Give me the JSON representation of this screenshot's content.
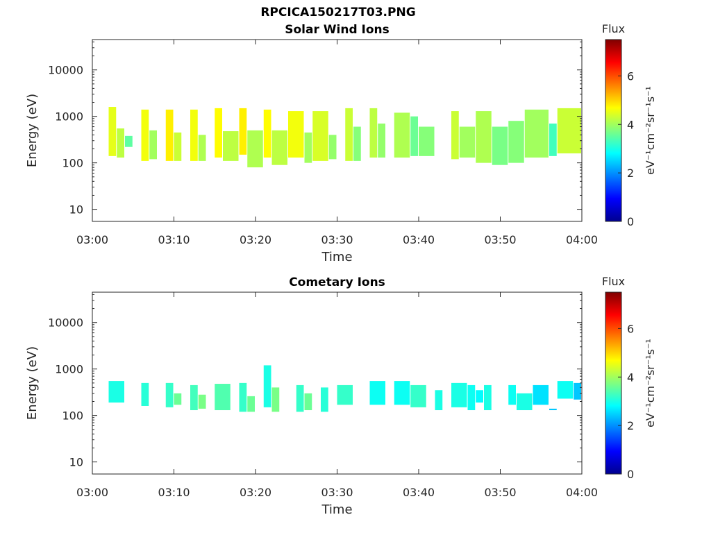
{
  "figure": {
    "filename_title": "RPCICA150217T03.PNG"
  },
  "chart_data": [
    {
      "type": "heatmap",
      "title": "Solar Wind Ions",
      "xlabel": "Time",
      "ylabel": "Energy (eV)",
      "x_ticks": [
        "03:00",
        "03:10",
        "03:20",
        "03:30",
        "03:40",
        "03:50",
        "04:00"
      ],
      "xlim": [
        "03:00",
        "04:00"
      ],
      "y_scale": "log",
      "ylim": [
        5.5,
        45000
      ],
      "y_ticks": [
        10,
        100,
        1000,
        10000
      ],
      "y_tick_labels": [
        "10",
        "100",
        "1000",
        "10000"
      ],
      "colorbar": {
        "title": "Flux",
        "unit_label": "eV⁻¹cm⁻²sr⁻¹s⁻¹",
        "range": [
          0,
          7.5
        ],
        "ticks": [
          "0",
          "2",
          "4",
          "6"
        ],
        "colormap": "jet"
      },
      "cells": [
        {
          "t": "03:02",
          "t_end": "03:03",
          "e_lo": 140,
          "e_hi": 1600,
          "flux": 4.5
        },
        {
          "t": "03:03",
          "t_end": "03:04",
          "e_lo": 130,
          "e_hi": 550,
          "flux": 4.2
        },
        {
          "t": "03:04",
          "t_end": "03:05",
          "e_lo": 220,
          "e_hi": 380,
          "flux": 3.5
        },
        {
          "t": "03:06",
          "t_end": "03:07",
          "e_lo": 110,
          "e_hi": 1400,
          "flux": 4.6
        },
        {
          "t": "03:07",
          "t_end": "03:08",
          "e_lo": 120,
          "e_hi": 500,
          "flux": 4.0
        },
        {
          "t": "03:09",
          "t_end": "03:10",
          "e_lo": 110,
          "e_hi": 1400,
          "flux": 4.8
        },
        {
          "t": "03:10",
          "t_end": "03:11",
          "e_lo": 110,
          "e_hi": 450,
          "flux": 4.3
        },
        {
          "t": "03:12",
          "t_end": "03:13",
          "e_lo": 110,
          "e_hi": 1400,
          "flux": 4.6
        },
        {
          "t": "03:13",
          "t_end": "03:14",
          "e_lo": 110,
          "e_hi": 400,
          "flux": 4.1
        },
        {
          "t": "03:15",
          "t_end": "03:16",
          "e_lo": 130,
          "e_hi": 1500,
          "flux": 4.7
        },
        {
          "t": "03:16",
          "t_end": "03:18",
          "e_lo": 110,
          "e_hi": 480,
          "flux": 4.2
        },
        {
          "t": "03:18",
          "t_end": "03:19",
          "e_lo": 150,
          "e_hi": 1500,
          "flux": 4.8
        },
        {
          "t": "03:19",
          "t_end": "03:21",
          "e_lo": 80,
          "e_hi": 500,
          "flux": 4.1
        },
        {
          "t": "03:21",
          "t_end": "03:22",
          "e_lo": 130,
          "e_hi": 1400,
          "flux": 4.7
        },
        {
          "t": "03:22",
          "t_end": "03:24",
          "e_lo": 90,
          "e_hi": 500,
          "flux": 4.2
        },
        {
          "t": "03:24",
          "t_end": "03:26",
          "e_lo": 130,
          "e_hi": 1300,
          "flux": 4.6
        },
        {
          "t": "03:26",
          "t_end": "03:27",
          "e_lo": 100,
          "e_hi": 450,
          "flux": 4.0
        },
        {
          "t": "03:27",
          "t_end": "03:29",
          "e_lo": 110,
          "e_hi": 1300,
          "flux": 4.4
        },
        {
          "t": "03:29",
          "t_end": "03:30",
          "e_lo": 120,
          "e_hi": 400,
          "flux": 3.9
        },
        {
          "t": "03:31",
          "t_end": "03:32",
          "e_lo": 110,
          "e_hi": 1500,
          "flux": 4.3
        },
        {
          "t": "03:32",
          "t_end": "03:33",
          "e_lo": 110,
          "e_hi": 600,
          "flux": 3.8
        },
        {
          "t": "03:34",
          "t_end": "03:35",
          "e_lo": 130,
          "e_hi": 1500,
          "flux": 4.2
        },
        {
          "t": "03:35",
          "t_end": "03:36",
          "e_lo": 130,
          "e_hi": 700,
          "flux": 3.9
        },
        {
          "t": "03:37",
          "t_end": "03:39",
          "e_lo": 130,
          "e_hi": 1200,
          "flux": 4.1
        },
        {
          "t": "03:39",
          "t_end": "03:40",
          "e_lo": 140,
          "e_hi": 1000,
          "flux": 3.6
        },
        {
          "t": "03:40",
          "t_end": "03:42",
          "e_lo": 140,
          "e_hi": 600,
          "flux": 3.8
        },
        {
          "t": "03:44",
          "t_end": "03:45",
          "e_lo": 120,
          "e_hi": 1300,
          "flux": 4.3
        },
        {
          "t": "03:45",
          "t_end": "03:47",
          "e_lo": 130,
          "e_hi": 600,
          "flux": 4.0
        },
        {
          "t": "03:47",
          "t_end": "03:49",
          "e_lo": 100,
          "e_hi": 1300,
          "flux": 4.1
        },
        {
          "t": "03:49",
          "t_end": "03:51",
          "e_lo": 90,
          "e_hi": 600,
          "flux": 3.7
        },
        {
          "t": "03:51",
          "t_end": "03:53",
          "e_lo": 100,
          "e_hi": 800,
          "flux": 3.8
        },
        {
          "t": "03:53",
          "t_end": "03:56",
          "e_lo": 130,
          "e_hi": 1400,
          "flux": 4.0
        },
        {
          "t": "03:56",
          "t_end": "03:57",
          "e_lo": 140,
          "e_hi": 700,
          "flux": 3.3
        },
        {
          "t": "03:57",
          "t_end": "04:00",
          "e_lo": 160,
          "e_hi": 1500,
          "flux": 4.3
        }
      ]
    },
    {
      "type": "heatmap",
      "title": "Cometary Ions",
      "xlabel": "Time",
      "ylabel": "Energy (eV)",
      "x_ticks": [
        "03:00",
        "03:10",
        "03:20",
        "03:30",
        "03:40",
        "03:50",
        "04:00"
      ],
      "xlim": [
        "03:00",
        "04:00"
      ],
      "y_scale": "log",
      "ylim": [
        5.5,
        45000
      ],
      "y_ticks": [
        10,
        100,
        1000,
        10000
      ],
      "y_tick_labels": [
        "10",
        "100",
        "1000",
        "10000"
      ],
      "colorbar": {
        "title": "Flux",
        "unit_label": "eV⁻¹cm⁻²sr⁻¹s⁻¹",
        "range": [
          0,
          7.5
        ],
        "ticks": [
          "0",
          "2",
          "4",
          "6"
        ],
        "colormap": "jet"
      },
      "cells": [
        {
          "t": "03:02",
          "t_end": "03:04",
          "e_lo": 190,
          "e_hi": 550,
          "flux": 3.0
        },
        {
          "t": "03:06",
          "t_end": "03:07",
          "e_lo": 160,
          "e_hi": 500,
          "flux": 3.1
        },
        {
          "t": "03:09",
          "t_end": "03:10",
          "e_lo": 150,
          "e_hi": 500,
          "flux": 3.2
        },
        {
          "t": "03:10",
          "t_end": "03:11",
          "e_lo": 170,
          "e_hi": 300,
          "flux": 3.6
        },
        {
          "t": "03:12",
          "t_end": "03:13",
          "e_lo": 130,
          "e_hi": 450,
          "flux": 3.3
        },
        {
          "t": "03:13",
          "t_end": "03:14",
          "e_lo": 140,
          "e_hi": 280,
          "flux": 3.7
        },
        {
          "t": "03:15",
          "t_end": "03:17",
          "e_lo": 130,
          "e_hi": 480,
          "flux": 3.4
        },
        {
          "t": "03:18",
          "t_end": "03:19",
          "e_lo": 120,
          "e_hi": 500,
          "flux": 3.2
        },
        {
          "t": "03:19",
          "t_end": "03:20",
          "e_lo": 120,
          "e_hi": 260,
          "flux": 3.6
        },
        {
          "t": "03:21",
          "t_end": "03:22",
          "e_lo": 150,
          "e_hi": 1200,
          "flux": 3.0
        },
        {
          "t": "03:22",
          "t_end": "03:23",
          "e_lo": 120,
          "e_hi": 400,
          "flux": 3.7
        },
        {
          "t": "03:25",
          "t_end": "03:26",
          "e_lo": 120,
          "e_hi": 450,
          "flux": 3.2
        },
        {
          "t": "03:26",
          "t_end": "03:27",
          "e_lo": 130,
          "e_hi": 300,
          "flux": 3.6
        },
        {
          "t": "03:28",
          "t_end": "03:29",
          "e_lo": 120,
          "e_hi": 400,
          "flux": 3.1
        },
        {
          "t": "03:30",
          "t_end": "03:32",
          "e_lo": 170,
          "e_hi": 450,
          "flux": 3.2
        },
        {
          "t": "03:34",
          "t_end": "03:36",
          "e_lo": 170,
          "e_hi": 550,
          "flux": 2.9
        },
        {
          "t": "03:37",
          "t_end": "03:39",
          "e_lo": 170,
          "e_hi": 550,
          "flux": 2.9
        },
        {
          "t": "03:39",
          "t_end": "03:41",
          "e_lo": 150,
          "e_hi": 450,
          "flux": 3.2
        },
        {
          "t": "03:42",
          "t_end": "03:43",
          "e_lo": 130,
          "e_hi": 350,
          "flux": 3.0
        },
        {
          "t": "03:44",
          "t_end": "03:46",
          "e_lo": 150,
          "e_hi": 500,
          "flux": 3.0
        },
        {
          "t": "03:46",
          "t_end": "03:47",
          "e_lo": 130,
          "e_hi": 450,
          "flux": 2.9
        },
        {
          "t": "03:47",
          "t_end": "03:48",
          "e_lo": 190,
          "e_hi": 350,
          "flux": 2.8
        },
        {
          "t": "03:48",
          "t_end": "03:49",
          "e_lo": 130,
          "e_hi": 450,
          "flux": 3.0
        },
        {
          "t": "03:51",
          "t_end": "03:52",
          "e_lo": 170,
          "e_hi": 450,
          "flux": 2.9
        },
        {
          "t": "03:52",
          "t_end": "03:54",
          "e_lo": 130,
          "e_hi": 300,
          "flux": 3.0
        },
        {
          "t": "03:54",
          "t_end": "03:56",
          "e_lo": 170,
          "e_hi": 450,
          "flux": 2.6
        },
        {
          "t": "03:56",
          "t_end": "03:57",
          "e_lo": 130,
          "e_hi": 140,
          "flux": 2.4
        },
        {
          "t": "03:57",
          "t_end": "03:59",
          "e_lo": 230,
          "e_hi": 550,
          "flux": 2.9
        },
        {
          "t": "03:59",
          "t_end": "04:00",
          "e_lo": 220,
          "e_hi": 500,
          "flux": 2.4
        }
      ]
    }
  ]
}
